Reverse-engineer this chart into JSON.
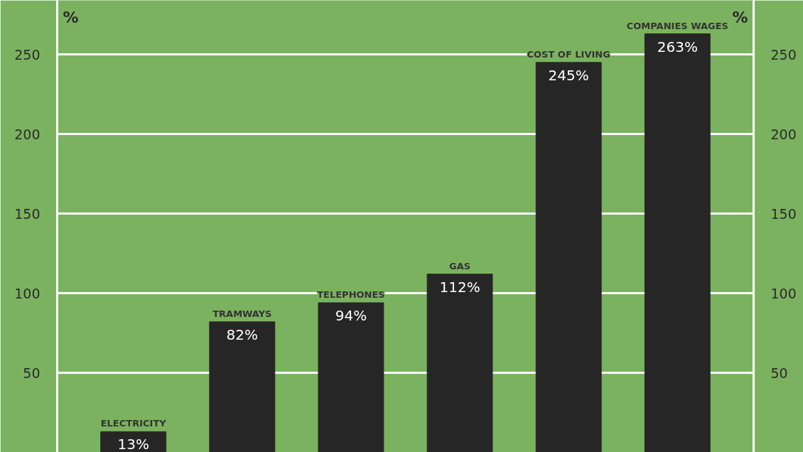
{
  "chart_data": {
    "type": "bar",
    "categories": [
      "ELECTRICITY",
      "TRAMWAYS",
      "TELEPHONES",
      "GAS",
      "COST OF LIVING",
      "COMPANIES WAGES"
    ],
    "values": [
      13,
      82,
      94,
      112,
      245,
      263
    ],
    "value_labels": [
      "13%",
      "82%",
      "94%",
      "112%",
      "245%",
      "263%"
    ],
    "color": "#262626",
    "ylabel": "%",
    "y2label": "%",
    "ylim": [
      0,
      284
    ],
    "yticks": [
      50,
      100,
      150,
      200,
      250
    ],
    "y2lim": [
      0,
      284
    ],
    "y2ticks": [
      50,
      100,
      150,
      200,
      250
    ],
    "grid": "y",
    "tick_labels": "y"
  }
}
